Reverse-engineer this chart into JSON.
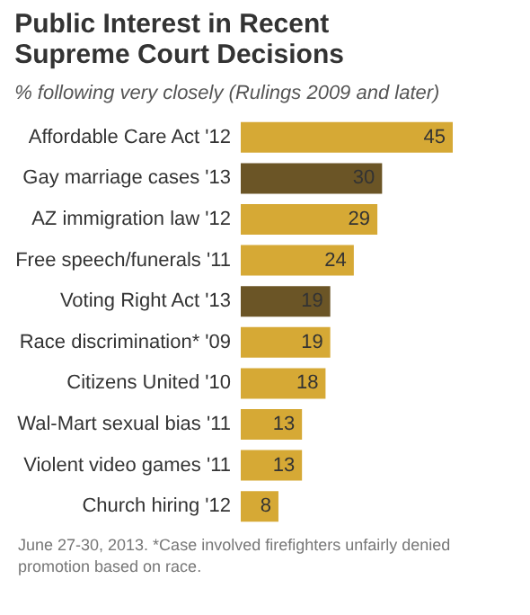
{
  "chart_data": {
    "type": "bar",
    "orientation": "horizontal",
    "title": "Public Interest in Recent Supreme Court Decisions",
    "subtitle": "% following very closely (Rulings 2009 and later)",
    "categories": [
      "Affordable Care Act '12",
      "Gay marriage cases '13",
      "AZ immigration law '12",
      "Free speech/funerals '11",
      "Voting Right Act '13",
      "Race discrimination* '09",
      "Citizens United '10",
      "Wal-Mart sexual bias '11",
      "Violent video games '11",
      "Church hiring '12"
    ],
    "values": [
      45,
      30,
      29,
      24,
      19,
      19,
      18,
      13,
      13,
      8
    ],
    "colors": [
      "#d6a935",
      "#6b5526",
      "#d6a935",
      "#d6a935",
      "#6b5526",
      "#d6a935",
      "#d6a935",
      "#d6a935",
      "#d6a935",
      "#d6a935"
    ],
    "xlim": [
      0,
      45
    ],
    "data_labels": true,
    "annotations": [
      "June 27-30, 2013. *Case involved firefighters unfairly denied promotion based on race."
    ]
  }
}
